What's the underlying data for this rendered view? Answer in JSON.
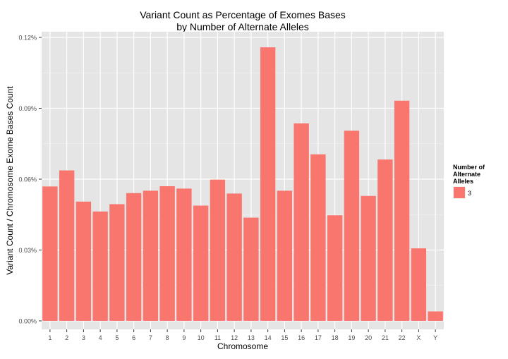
{
  "chart_data": {
    "type": "bar",
    "title_lines": [
      "Variant Count as Percentage of Exomes Bases",
      "by Number of Alternate Alleles"
    ],
    "xlabel": "Chromosome",
    "ylabel": "Variant Count / Chromosome Exome Bases Count",
    "categories": [
      "1",
      "2",
      "3",
      "4",
      "5",
      "6",
      "7",
      "8",
      "9",
      "10",
      "11",
      "12",
      "13",
      "14",
      "15",
      "16",
      "17",
      "18",
      "19",
      "20",
      "21",
      "22",
      "X",
      "Y"
    ],
    "series": [
      {
        "name": "3",
        "values": [
          0.0569,
          0.0637,
          0.0505,
          0.0463,
          0.0494,
          0.0541,
          0.0551,
          0.057,
          0.056,
          0.0488,
          0.0598,
          0.0539,
          0.0437,
          0.1158,
          0.0551,
          0.0836,
          0.0705,
          0.0447,
          0.0805,
          0.0529,
          0.0683,
          0.0932,
          0.0307,
          0.004
        ]
      }
    ],
    "ylim": [
      -0.0036,
      0.1224
    ],
    "yticks": [
      0,
      0.03,
      0.06,
      0.09,
      0.12
    ],
    "ytick_labels": [
      "0.00%",
      "0.03%",
      "0.06%",
      "0.09%",
      "0.12%"
    ],
    "legend": {
      "title_lines": [
        "Number of",
        "Alternate",
        "Alleles"
      ],
      "placement": "right"
    },
    "grid": true,
    "colors": {
      "panel": "#e5e5e5",
      "grid_major": "#ffffff",
      "grid_minor": "#f2f2f2",
      "bar": "#f8766d",
      "tick_text": "#4d4d4d",
      "text": "#000000"
    }
  }
}
